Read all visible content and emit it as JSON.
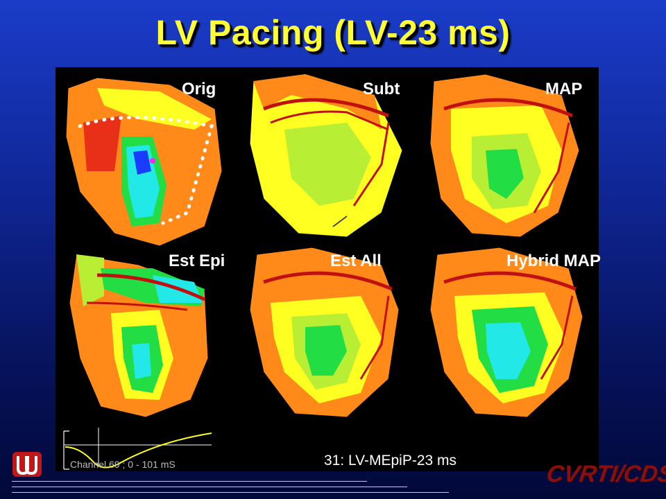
{
  "slide": {
    "title": "LV Pacing (LV-23 ms)",
    "footer_caption": "31: LV-MEpiP-23 ms",
    "channel_caption": "Channel 69 ; 0 - 101 mS",
    "logo_text": "CVRTI/CDSP"
  },
  "maps": {
    "labels": [
      "Orig",
      "Subt",
      "MAP",
      "Est Epi",
      "Est All",
      "Hybrid MAP"
    ]
  },
  "colors": {
    "title": "#ffff33",
    "contour_red": "#e83018",
    "contour_orange": "#ff8a1a",
    "contour_yellow": "#ffff22",
    "contour_green": "#22dd44",
    "contour_cyan": "#22e8e8",
    "contour_blue": "#1a3cff",
    "vessel": "#c01010"
  }
}
